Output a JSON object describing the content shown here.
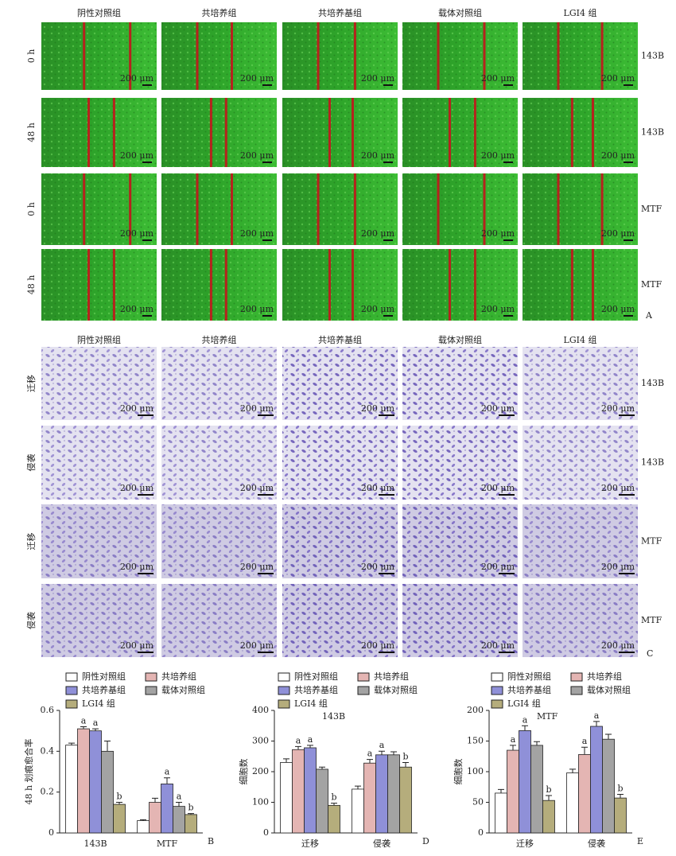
{
  "panel_a": {
    "columns": [
      "阴性对照组",
      "共培养组",
      "共培养基组",
      "载体对照组",
      "LGI4 组"
    ],
    "rows": [
      {
        "time": "0 h",
        "cell": "143B"
      },
      {
        "time": "48 h",
        "cell": "143B"
      },
      {
        "time": "0 h",
        "cell": "MTF"
      },
      {
        "time": "48 h",
        "cell": "MTF"
      }
    ],
    "scale": "200 μm",
    "letter": "A"
  },
  "panel_c": {
    "columns": [
      "阴性对照组",
      "共培养组",
      "共培养基组",
      "载体对照组",
      "LGI4 组"
    ],
    "rows": [
      {
        "assay": "迁移",
        "cell": "143B"
      },
      {
        "assay": "侵袭",
        "cell": "143B"
      },
      {
        "assay": "迁移",
        "cell": "MTF"
      },
      {
        "assay": "侵袭",
        "cell": "MTF"
      }
    ],
    "scale": "200 μm",
    "letter": "C"
  },
  "chart_data": [
    {
      "type": "bar",
      "ylabel": "48 h 划痕愈合率",
      "letter": "B",
      "categories": [
        "143B",
        "MTF"
      ],
      "series": [
        {
          "name": "阴性对照组",
          "color": "#ffffff",
          "values": [
            0.43,
            0.06
          ],
          "errors": [
            0.01,
            0.005
          ],
          "sig": [
            null,
            null
          ]
        },
        {
          "name": "共培养组",
          "color": "#e4b5b3",
          "values": [
            0.51,
            0.15
          ],
          "errors": [
            0.01,
            0.02
          ],
          "sig": [
            "a",
            null
          ]
        },
        {
          "name": "共培养基组",
          "color": "#8f90d8",
          "values": [
            0.5,
            0.24
          ],
          "errors": [
            0.01,
            0.03
          ],
          "sig": [
            "a",
            "a"
          ]
        },
        {
          "name": "载体对照组",
          "color": "#a3a3a3",
          "values": [
            0.4,
            0.13
          ],
          "errors": [
            0.05,
            0.02
          ],
          "sig": [
            null,
            "a"
          ]
        },
        {
          "name": "LGI4 组",
          "color": "#b5ad7c",
          "values": [
            0.14,
            0.09
          ],
          "errors": [
            0.01,
            0.005
          ],
          "sig": [
            "b",
            "b"
          ]
        }
      ],
      "ylim": [
        0,
        0.6
      ],
      "yticks": [
        0,
        0.2,
        0.4,
        0.6
      ]
    },
    {
      "type": "bar",
      "title": "143B",
      "ylabel": "细胞数",
      "letter": "D",
      "categories": [
        "迁移",
        "侵袭"
      ],
      "series": [
        {
          "name": "阴性对照组",
          "color": "#ffffff",
          "values": [
            230,
            143
          ],
          "errors": [
            12,
            10
          ],
          "sig": [
            null,
            null
          ]
        },
        {
          "name": "共培养组",
          "color": "#e4b5b3",
          "values": [
            272,
            228
          ],
          "errors": [
            10,
            12
          ],
          "sig": [
            "a",
            "a"
          ]
        },
        {
          "name": "共培养基组",
          "color": "#8f90d8",
          "values": [
            278,
            255
          ],
          "errors": [
            8,
            12
          ],
          "sig": [
            "a",
            "a"
          ]
        },
        {
          "name": "载体对照组",
          "color": "#a3a3a3",
          "values": [
            208,
            255
          ],
          "errors": [
            7,
            10
          ],
          "sig": [
            null,
            null
          ]
        },
        {
          "name": "LGI4 组",
          "color": "#b5ad7c",
          "values": [
            90,
            215
          ],
          "errors": [
            7,
            15
          ],
          "sig": [
            "b",
            "b"
          ]
        }
      ],
      "ylim": [
        0,
        400
      ],
      "yticks": [
        0,
        100,
        200,
        300,
        400
      ]
    },
    {
      "type": "bar",
      "title": "MTF",
      "ylabel": "细胞数",
      "letter": "E",
      "categories": [
        "迁移",
        "侵袭"
      ],
      "series": [
        {
          "name": "阴性对照组",
          "color": "#ffffff",
          "values": [
            65,
            98
          ],
          "errors": [
            6,
            6
          ],
          "sig": [
            null,
            null
          ]
        },
        {
          "name": "共培养组",
          "color": "#e4b5b3",
          "values": [
            135,
            128
          ],
          "errors": [
            8,
            12
          ],
          "sig": [
            "a",
            "a"
          ]
        },
        {
          "name": "共培养基组",
          "color": "#8f90d8",
          "values": [
            167,
            174
          ],
          "errors": [
            8,
            8
          ],
          "sig": [
            "a",
            "a"
          ]
        },
        {
          "name": "载体对照组",
          "color": "#a3a3a3",
          "values": [
            143,
            153
          ],
          "errors": [
            6,
            8
          ],
          "sig": [
            null,
            null
          ]
        },
        {
          "name": "LGI4 组",
          "color": "#b5ad7c",
          "values": [
            53,
            57
          ],
          "errors": [
            8,
            6
          ],
          "sig": [
            "b",
            "b"
          ]
        }
      ],
      "ylim": [
        0,
        200
      ],
      "yticks": [
        0,
        50,
        100,
        150,
        200
      ]
    }
  ]
}
